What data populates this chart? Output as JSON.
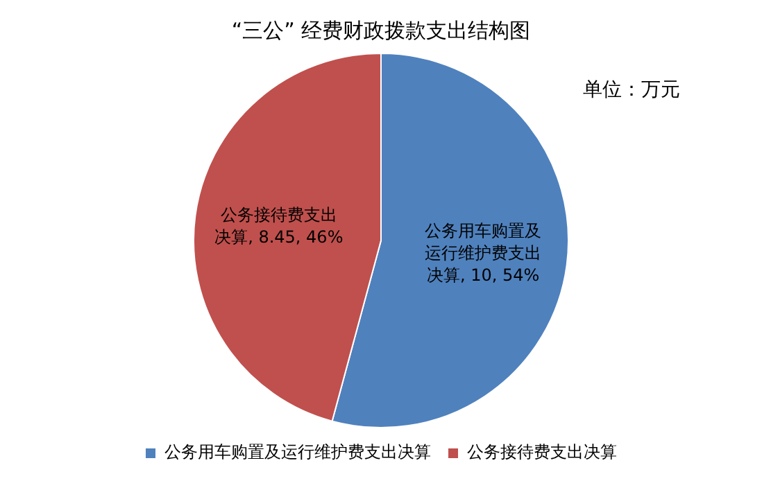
{
  "chart_data": {
    "type": "pie",
    "title": "“三公” 经费财政拨款支出结构图",
    "annotations": [
      "单位：万元"
    ],
    "categories": [
      "公务用车购置及运行维护费支出决算",
      "公务接待费支出决算"
    ],
    "values": [
      10,
      8.45
    ],
    "colors": [
      "#4f81bd",
      "#c0504d"
    ],
    "value_labels": [
      "公务用车购置及运行维护费支出决算, 10, 54%",
      "公务接待费支出决算, 8.45, 46%"
    ],
    "legend": "bottom"
  }
}
